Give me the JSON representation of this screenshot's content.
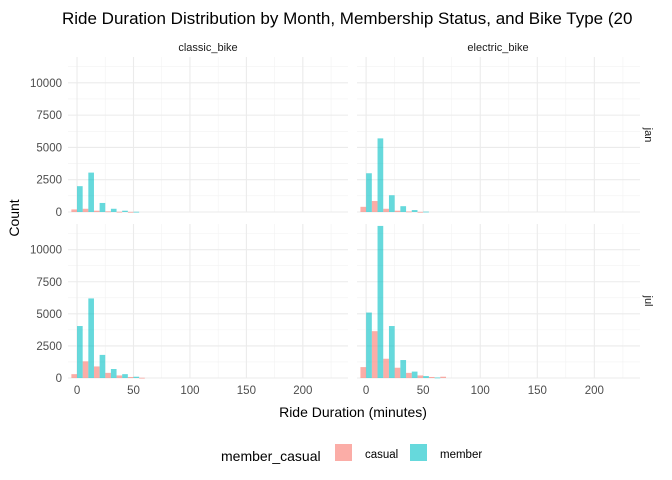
{
  "chart_data": {
    "type": "bar",
    "title": "Ride Duration Distribution by Month, Membership Status, and Bike Type (20",
    "xlabel": "Ride Duration (minutes)",
    "ylabel": "Count",
    "xlim": [
      -8,
      240
    ],
    "ylim": [
      0,
      12000
    ],
    "x_ticks": [
      0,
      50,
      100,
      150,
      200
    ],
    "y_ticks": [
      0,
      2500,
      5000,
      7500,
      10000
    ],
    "y_tick_labels": [
      "0",
      "2500",
      "5000",
      "7500",
      "10000"
    ],
    "bin_width": 10,
    "dodge": true,
    "grid": true,
    "columns": [
      "classic_bike",
      "electric_bike"
    ],
    "rows": [
      "jan",
      "jul"
    ],
    "legend": {
      "title": "member_casual",
      "position": "bottom",
      "entries": [
        {
          "name": "casual",
          "color": "#F8766D"
        },
        {
          "name": "member",
          "color": "#00BFC4"
        }
      ]
    },
    "bins": [
      0,
      10,
      20,
      30,
      40,
      50,
      60,
      70
    ],
    "panels": [
      {
        "row": "jan",
        "column": "classic_bike",
        "series": [
          {
            "name": "casual",
            "values": [
              200,
              250,
              100,
              50,
              20,
              10,
              0,
              0
            ]
          },
          {
            "name": "member",
            "values": [
              2000,
              3050,
              700,
              250,
              100,
              20,
              0,
              0
            ]
          }
        ]
      },
      {
        "row": "jan",
        "column": "electric_bike",
        "series": [
          {
            "name": "casual",
            "values": [
              400,
              850,
              250,
              100,
              40,
              10,
              0,
              0
            ]
          },
          {
            "name": "member",
            "values": [
              3000,
              5700,
              1300,
              450,
              150,
              30,
              0,
              0
            ]
          }
        ]
      },
      {
        "row": "jul",
        "column": "classic_bike",
        "series": [
          {
            "name": "casual",
            "values": [
              300,
              1300,
              900,
              400,
              200,
              80,
              20,
              0
            ]
          },
          {
            "name": "member",
            "values": [
              4050,
              6200,
              1800,
              700,
              300,
              100,
              0,
              0
            ]
          }
        ]
      },
      {
        "row": "jul",
        "column": "electric_bike",
        "series": [
          {
            "name": "casual",
            "values": [
              850,
              3650,
              1500,
              800,
              400,
              200,
              80,
              100
            ]
          },
          {
            "name": "member",
            "values": [
              5100,
              11850,
              4050,
              1400,
              500,
              150,
              40,
              0
            ]
          }
        ]
      }
    ]
  }
}
